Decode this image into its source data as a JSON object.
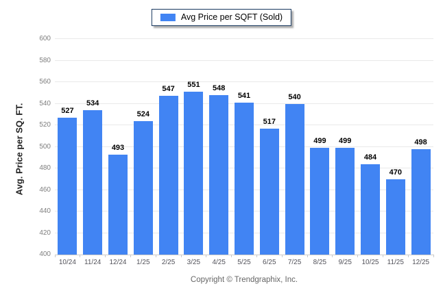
{
  "legend": {
    "label": "Avg Price per SQFT (Sold)"
  },
  "footer": {
    "text": "Copyright © Trendgraphix, Inc."
  },
  "chart_data": {
    "type": "bar",
    "title": "",
    "series_name": "Avg Price per SQFT (Sold)",
    "categories": [
      "10/24",
      "11/24",
      "12/24",
      "1/25",
      "2/25",
      "3/25",
      "4/25",
      "5/25",
      "6/25",
      "7/25",
      "8/25",
      "9/25",
      "10/25",
      "11/25",
      "12/25"
    ],
    "values": [
      527,
      534,
      493,
      524,
      547,
      551,
      548,
      541,
      517,
      540,
      499,
      499,
      484,
      470,
      498
    ],
    "xlabel": "",
    "ylabel": "Avg. Price per SQ. FT.",
    "ylim": [
      400,
      600
    ],
    "ytick_step": 20,
    "grid": "horizontal",
    "legend_position": "top-center",
    "colors": {
      "bar": "#4184F3",
      "legend_border": "#17375E",
      "gridline": "#E9E9E9",
      "axis_line": "#C9C9C9",
      "y_tick_label": "#7D7D7D",
      "x_tick_label": "#52525A",
      "value_label": "#000000",
      "footer_text": "#666666"
    }
  }
}
